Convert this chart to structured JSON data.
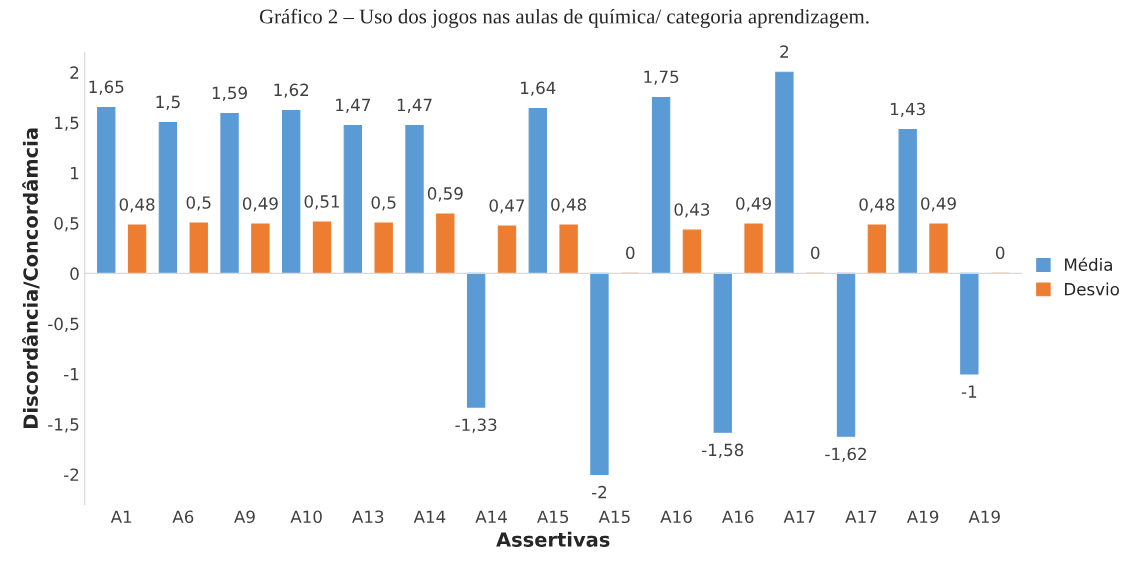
{
  "chart_data": {
    "type": "bar",
    "title": "Gráfico 2 – Uso dos jogos nas aulas de química/ categoria aprendizagem.",
    "xlabel": "Assertivas",
    "ylabel": "Discordância/Concordâmcia",
    "categories": [
      "A1",
      "A6",
      "A9",
      "A10",
      "A13",
      "A14",
      "A14",
      "A15",
      "A15",
      "A16",
      "A16",
      "A17",
      "A17",
      "A19",
      "A19"
    ],
    "series": [
      {
        "name": "Média",
        "color": "#5b9bd5",
        "values": [
          1.65,
          1.5,
          1.59,
          1.62,
          1.47,
          1.47,
          -1.33,
          1.64,
          -2,
          1.75,
          -1.58,
          2,
          -1.62,
          1.43,
          -1
        ],
        "value_labels": [
          "1,65",
          "1,5",
          "1,59",
          "1,62",
          "1,47",
          "1,47",
          "-1,33",
          "1,64",
          "-2",
          "1,75",
          "-1,58",
          "2",
          "-1,62",
          "1,43",
          "-1"
        ]
      },
      {
        "name": "Desvio",
        "color": "#ed7d31",
        "values": [
          0.48,
          0.5,
          0.49,
          0.51,
          0.5,
          0.59,
          0.47,
          0.48,
          0,
          0.43,
          0.49,
          0,
          0.48,
          0.49,
          0
        ],
        "value_labels": [
          "0,48",
          "0,5",
          "0,49",
          "0,51",
          "0,5",
          "0,59",
          "0,47",
          "0,48",
          "0",
          "0,43",
          "0,49",
          "0",
          "0,48",
          "0,49",
          "0"
        ]
      }
    ],
    "ylim": [
      -2.3,
      2.2
    ],
    "yticks": [
      {
        "value": -2,
        "label": "-2"
      },
      {
        "value": -1.5,
        "label": "-1,5"
      },
      {
        "value": -1,
        "label": "-1"
      },
      {
        "value": -0.5,
        "label": "-0,5"
      },
      {
        "value": 0,
        "label": "0"
      },
      {
        "value": 0.5,
        "label": "0,5"
      },
      {
        "value": 1,
        "label": "1"
      },
      {
        "value": 1.5,
        "label": "1,5"
      },
      {
        "value": 2,
        "label": "2"
      }
    ],
    "legend": "right"
  }
}
